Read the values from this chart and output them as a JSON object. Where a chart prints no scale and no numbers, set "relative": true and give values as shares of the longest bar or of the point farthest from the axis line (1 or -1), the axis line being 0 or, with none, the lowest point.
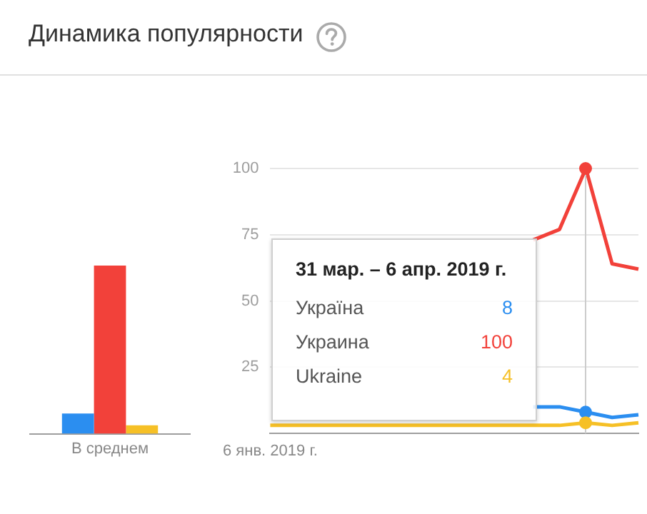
{
  "chart_data": [
    {
      "type": "bar",
      "title": "Динамика популярности",
      "categories": [
        "В среднем"
      ],
      "relative": true,
      "legend": false,
      "grid": false,
      "series": [
        {
          "color": "#2b8ef0",
          "values": [
            0.12
          ]
        },
        {
          "color": "#f2413a",
          "values": [
            1
          ]
        },
        {
          "color": "#f6c026",
          "values": [
            0.05
          ]
        }
      ]
    },
    {
      "type": "line",
      "categories": [
        "6 янв. 2019 г.",
        null,
        null,
        null,
        null,
        null,
        null,
        null,
        null,
        null,
        null,
        null,
        null,
        null,
        null
      ],
      "series": [
        {
          "color": "#2b8ef0",
          "values": [
            null,
            null,
            null,
            null,
            null,
            null,
            null,
            null,
            null,
            null,
            10,
            10,
            8,
            6,
            7
          ]
        },
        {
          "color": "#f2413a",
          "values": [
            null,
            null,
            null,
            null,
            null,
            null,
            null,
            null,
            null,
            null,
            73,
            77,
            100,
            64,
            62
          ]
        },
        {
          "color": "#f6c026",
          "values": [
            3,
            3,
            3,
            3,
            3,
            3,
            3,
            3,
            3,
            3,
            3,
            3,
            4,
            3,
            4
          ]
        }
      ],
      "ylim": [
        0,
        100
      ],
      "yticks": [
        25,
        50,
        75,
        100
      ],
      "grid": "y",
      "legend": false,
      "marker": "none"
    },
    {
      "type": "other",
      "title": "31 мар. – 6 апр. 2019 г.",
      "categories": [
        "Україна",
        "Украина",
        "Ukraine"
      ],
      "values": [
        8,
        100,
        4
      ],
      "data_labels": true
    }
  ]
}
